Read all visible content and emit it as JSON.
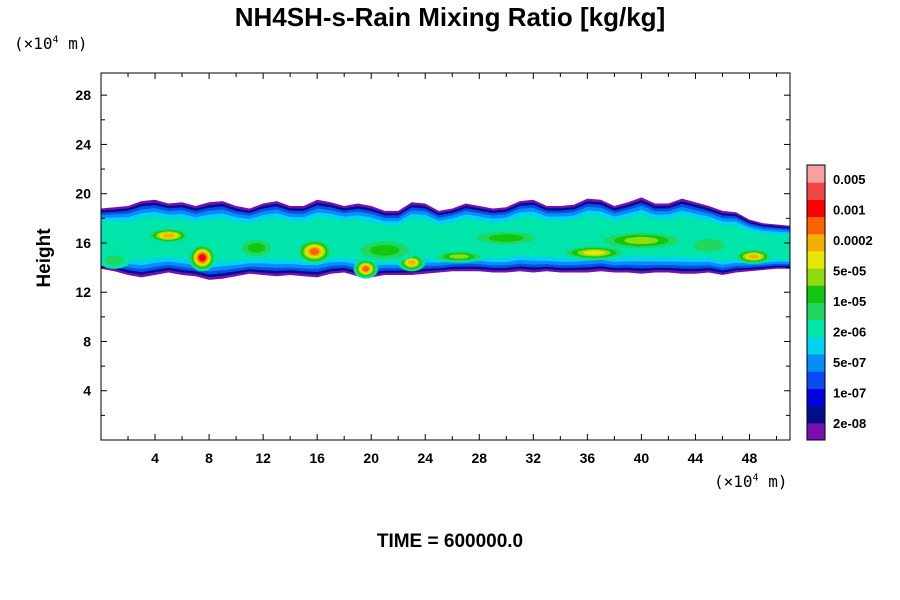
{
  "chart_data": {
    "type": "heatmap",
    "title": "NH4SH-s-Rain Mixing Ratio [kg/kg]",
    "ylabel": "Height",
    "x_unit": {
      "prefix": "(×10",
      "exp": "4",
      "suffix": " m)"
    },
    "y_unit": {
      "prefix": "(×10",
      "exp": "4",
      "suffix": " m)"
    },
    "x_ticks": [
      4,
      8,
      12,
      16,
      20,
      24,
      28,
      32,
      36,
      40,
      44,
      48
    ],
    "y_ticks": [
      4,
      8,
      12,
      16,
      20,
      24,
      28
    ],
    "xlim": [
      0,
      51
    ],
    "ylim": [
      0,
      29.8
    ],
    "grid": false,
    "legend_position": "right",
    "colorbar": {
      "colors": [
        "#7a0fb0",
        "#000e8a",
        "#0000e0",
        "#0a4cf0",
        "#0a8cf5",
        "#00d2f0",
        "#00e6aa",
        "#20d860",
        "#10c810",
        "#90dc10",
        "#e6e600",
        "#f4b000",
        "#ff6000",
        "#ff0000",
        "#f04848",
        "#f8a0a0"
      ],
      "labels": [
        "0.005",
        "0.001",
        "0.0002",
        "5e-05",
        "1e-05",
        "2e-06",
        "5e-07",
        "1e-07",
        "2e-08"
      ]
    },
    "field_blobs": [
      {
        "x": 7.5,
        "y": 14.8,
        "rx": 1.0,
        "ry": 1.1,
        "level": 13
      },
      {
        "x": 5.0,
        "y": 16.6,
        "rx": 1.6,
        "ry": 0.6,
        "level": 11
      },
      {
        "x": 15.8,
        "y": 15.3,
        "rx": 1.3,
        "ry": 1.0,
        "level": 12
      },
      {
        "x": 19.6,
        "y": 13.9,
        "rx": 0.9,
        "ry": 0.8,
        "level": 12
      },
      {
        "x": 23.0,
        "y": 14.4,
        "rx": 1.0,
        "ry": 0.7,
        "level": 11
      },
      {
        "x": 48.3,
        "y": 14.9,
        "rx": 1.4,
        "ry": 0.6,
        "level": 11
      },
      {
        "x": 36.5,
        "y": 15.2,
        "rx": 2.5,
        "ry": 0.6,
        "level": 10
      },
      {
        "x": 26.5,
        "y": 14.9,
        "rx": 2.0,
        "ry": 0.5,
        "level": 9
      },
      {
        "x": 11.5,
        "y": 15.6,
        "rx": 1.5,
        "ry": 0.9,
        "level": 8
      },
      {
        "x": 40.0,
        "y": 16.2,
        "rx": 3.5,
        "ry": 0.8,
        "level": 9
      },
      {
        "x": 30.0,
        "y": 16.4,
        "rx": 3.0,
        "ry": 0.7,
        "level": 8
      },
      {
        "x": 45.0,
        "y": 15.8,
        "rx": 2.0,
        "ry": 0.9,
        "level": 7
      },
      {
        "x": 21.0,
        "y": 15.4,
        "rx": 2.5,
        "ry": 1.0,
        "level": 8
      },
      {
        "x": 1.0,
        "y": 14.6,
        "rx": 1.2,
        "ry": 0.7,
        "level": 7
      }
    ]
  },
  "time_label": "TIME = 600000.0"
}
